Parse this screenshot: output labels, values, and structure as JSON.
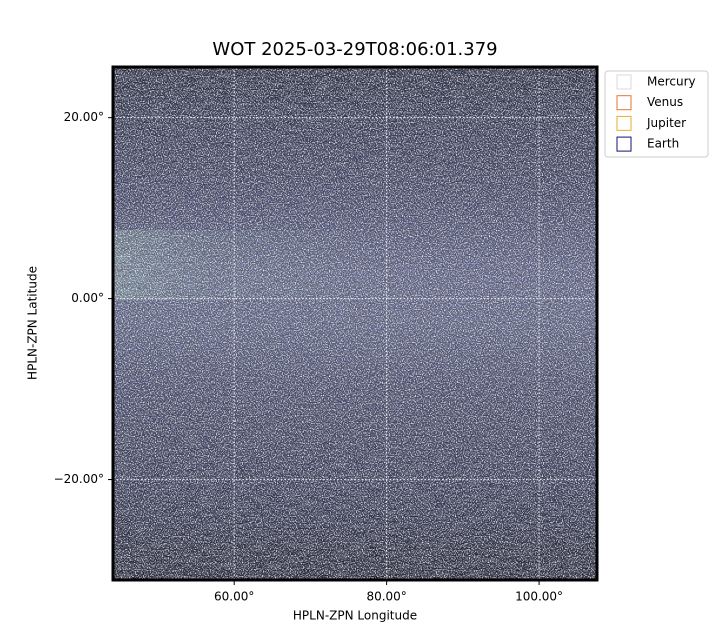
{
  "chart_data": {
    "type": "image",
    "title": "WOT 2025-03-29T08:06:01.379",
    "xlabel": "HPLN-ZPN Longitude",
    "ylabel": "HPLN-ZPN Latitude",
    "xlim": [
      44.1,
      107.6
    ],
    "ylim": [
      -31.1,
      25.6
    ],
    "xticks": [
      {
        "value": 60,
        "label": "60.00°"
      },
      {
        "value": 80,
        "label": "80.00°"
      },
      {
        "value": 100,
        "label": "100.00°"
      }
    ],
    "yticks": [
      {
        "value": -20,
        "label": "−20.00°"
      },
      {
        "value": 0,
        "label": "0.00°"
      },
      {
        "value": 20,
        "label": "20.00°"
      }
    ],
    "grid": true,
    "legend_loc": "outside upper right",
    "legend": [
      {
        "name": "Mercury",
        "color": "#d9d9d9"
      },
      {
        "name": "Venus",
        "color": "#e0782f"
      },
      {
        "name": "Jupiter",
        "color": "#e8ad2a"
      },
      {
        "name": "Earth",
        "color": "#10107a"
      }
    ]
  }
}
